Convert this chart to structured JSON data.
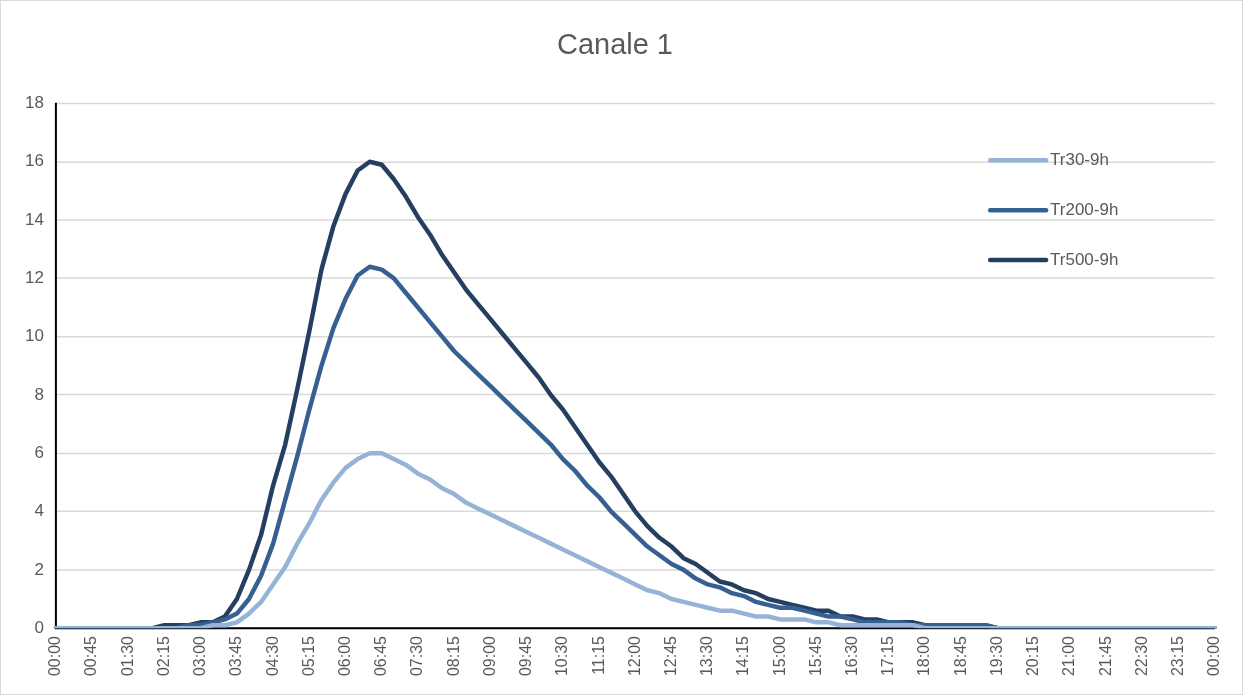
{
  "chart_data": {
    "type": "line",
    "title": "Canale 1",
    "categories": [
      "00:00",
      null,
      null,
      "00:45",
      null,
      null,
      "01:30",
      null,
      null,
      "02:15",
      null,
      null,
      "03:00",
      null,
      null,
      "03:45",
      null,
      null,
      "04:30",
      null,
      null,
      "05:15",
      null,
      null,
      "06:00",
      null,
      null,
      "06:45",
      null,
      null,
      "07:30",
      null,
      null,
      "08:15",
      null,
      null,
      "09:00",
      null,
      null,
      "09:45",
      null,
      null,
      "10:30",
      null,
      null,
      "11:15",
      null,
      null,
      "12:00",
      null,
      null,
      "12:45",
      null,
      null,
      "13:30",
      null,
      null,
      "14:15",
      null,
      null,
      "15:00",
      null,
      null,
      "15:45",
      null,
      null,
      "16:30",
      null,
      null,
      "17:15",
      null,
      null,
      "18:00",
      null,
      null,
      "18:45",
      null,
      null,
      "19:30",
      null,
      null,
      "20:15",
      null,
      null,
      "21:00",
      null,
      null,
      "21:45",
      null,
      null,
      "22:30",
      null,
      null,
      "23:15",
      null,
      null,
      "00:00"
    ],
    "series": [
      {
        "name": "Tr30-9h",
        "color": "#95b3d7",
        "values": [
          0,
          0,
          0,
          0,
          0,
          0,
          0,
          0,
          0,
          0,
          0,
          0,
          0,
          0.1,
          0.1,
          0.2,
          0.5,
          0.9,
          1.5,
          2.1,
          2.9,
          3.6,
          4.4,
          5.0,
          5.5,
          5.8,
          6.0,
          6.0,
          5.8,
          5.6,
          5.3,
          5.1,
          4.8,
          4.6,
          4.3,
          4.1,
          3.9,
          3.7,
          3.5,
          3.3,
          3.1,
          2.9,
          2.7,
          2.5,
          2.3,
          2.1,
          1.9,
          1.7,
          1.5,
          1.3,
          1.2,
          1.0,
          0.9,
          0.8,
          0.7,
          0.6,
          0.6,
          0.5,
          0.4,
          0.4,
          0.3,
          0.3,
          0.3,
          0.2,
          0.2,
          0.1,
          0.1,
          0.1,
          0.1,
          0.1,
          0.1,
          0.1,
          0,
          0,
          0,
          0,
          0,
          0,
          0,
          0,
          0,
          0,
          0,
          0,
          0,
          0,
          0,
          0,
          0,
          0,
          0,
          0,
          0,
          0,
          0,
          0,
          0
        ]
      },
      {
        "name": "Tr200-9h",
        "color": "#376092",
        "values": [
          0,
          0,
          0,
          0,
          0,
          0,
          0,
          0,
          0,
          0,
          0,
          0.1,
          0.1,
          0.2,
          0.3,
          0.5,
          1.0,
          1.8,
          2.9,
          4.4,
          5.9,
          7.5,
          9.0,
          10.3,
          11.3,
          12.1,
          12.4,
          12.3,
          12.0,
          11.5,
          11.0,
          10.5,
          10.0,
          9.5,
          9.1,
          8.7,
          8.3,
          7.9,
          7.5,
          7.1,
          6.7,
          6.3,
          5.8,
          5.4,
          4.9,
          4.5,
          4.0,
          3.6,
          3.2,
          2.8,
          2.5,
          2.2,
          2.0,
          1.7,
          1.5,
          1.4,
          1.2,
          1.1,
          0.9,
          0.8,
          0.7,
          0.7,
          0.6,
          0.5,
          0.4,
          0.4,
          0.3,
          0.2,
          0.2,
          0.2,
          0.2,
          0.1,
          0.1,
          0.1,
          0.1,
          0.1,
          0.1,
          0.1,
          0,
          0,
          0,
          0,
          0,
          0,
          0,
          0,
          0,
          0,
          0,
          0,
          0,
          0,
          0,
          0,
          0,
          0,
          0
        ]
      },
      {
        "name": "Tr500-9h",
        "color": "#243f60",
        "values": [
          0,
          0,
          0,
          0,
          0,
          0,
          0,
          0,
          0,
          0.1,
          0.1,
          0.1,
          0.2,
          0.2,
          0.4,
          1.0,
          2.0,
          3.2,
          4.9,
          6.3,
          8.2,
          10.2,
          12.3,
          13.8,
          14.9,
          15.7,
          16.0,
          15.9,
          15.4,
          14.8,
          14.1,
          13.5,
          12.8,
          12.2,
          11.6,
          11.1,
          10.6,
          10.1,
          9.6,
          9.1,
          8.6,
          8.0,
          7.5,
          6.9,
          6.3,
          5.7,
          5.2,
          4.6,
          4.0,
          3.5,
          3.1,
          2.8,
          2.4,
          2.2,
          1.9,
          1.6,
          1.5,
          1.3,
          1.2,
          1.0,
          0.9,
          0.8,
          0.7,
          0.6,
          0.6,
          0.4,
          0.4,
          0.3,
          0.3,
          0.2,
          0.2,
          0.2,
          0.1,
          0.1,
          0.1,
          0.1,
          0.1,
          0.1,
          0,
          0,
          0,
          0,
          0,
          0,
          0,
          0,
          0,
          0,
          0,
          0,
          0,
          0,
          0,
          0,
          0,
          0,
          0
        ]
      }
    ],
    "ylim": [
      0,
      18
    ],
    "yticks": [
      0,
      2,
      4,
      6,
      8,
      10,
      12,
      14,
      16,
      18
    ],
    "grid": "y",
    "legend": "top right",
    "marker": "none",
    "line_style": "solid"
  }
}
